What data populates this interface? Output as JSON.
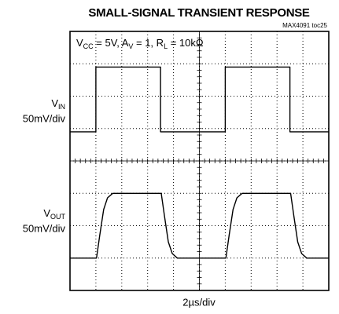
{
  "chart_data": {
    "type": "line",
    "title": "SMALL-SIGNAL TRANSIENT RESPONSE",
    "note": "MAX4091 toc25",
    "annotation_parts": [
      "V",
      "CC",
      " = 5V, A",
      "V",
      " = 1, R",
      "L",
      " = 10kΩ"
    ],
    "x_label": "2µs/div",
    "xlim": [
      0,
      20
    ],
    "xticks": [
      0,
      2,
      4,
      6,
      8,
      10,
      12,
      14,
      16,
      18,
      20
    ],
    "ylim": [
      0,
      400
    ],
    "yticks": [
      0,
      50,
      100,
      150,
      200,
      250,
      300,
      350,
      400
    ],
    "grid": true,
    "color": "#000000",
    "series": [
      {
        "label_parts": [
          "V",
          "IN"
        ],
        "scale": "50mV/div",
        "x": [
          0,
          2,
          2,
          7,
          7,
          12,
          12,
          17,
          17,
          20
        ],
        "values": [
          245,
          245,
          345,
          345,
          245,
          245,
          345,
          345,
          245,
          245
        ]
      },
      {
        "label_parts": [
          "V",
          "OUT"
        ],
        "scale": "50mV/div",
        "x": [
          0,
          2.05,
          2.3,
          2.6,
          2.9,
          3.3,
          7.05,
          7.3,
          7.6,
          7.9,
          8.3,
          12.05,
          12.3,
          12.6,
          12.9,
          13.3,
          17.05,
          17.3,
          17.6,
          17.9,
          18.3,
          20
        ],
        "values": [
          50,
          50,
          85,
          125,
          143,
          150,
          150,
          115,
          75,
          57,
          50,
          50,
          85,
          125,
          143,
          150,
          150,
          115,
          75,
          57,
          50,
          50
        ]
      }
    ]
  }
}
